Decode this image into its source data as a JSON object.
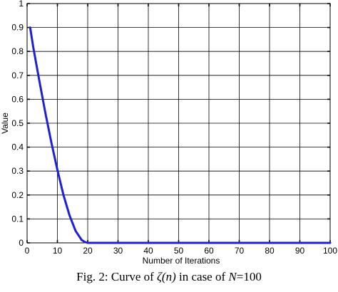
{
  "chart_data": {
    "type": "line",
    "xlabel": "Number of Iterations",
    "ylabel": "Value",
    "xlim": [
      0,
      100
    ],
    "ylim": [
      0,
      1
    ],
    "x_ticks": [
      0,
      10,
      20,
      30,
      40,
      50,
      60,
      70,
      80,
      90,
      100
    ],
    "y_ticks": [
      0,
      0.1,
      0.2,
      0.3,
      0.4,
      0.5,
      0.6,
      0.7,
      0.8,
      0.9,
      1
    ],
    "grid": true,
    "series": [
      {
        "color": "#1f1fd6",
        "x": [
          1,
          2,
          4,
          6,
          8,
          10,
          12,
          14,
          16,
          18,
          19,
          20,
          25,
          30,
          40,
          50,
          60,
          70,
          80,
          90,
          100
        ],
        "y": [
          0.9,
          0.82,
          0.68,
          0.545,
          0.42,
          0.305,
          0.2,
          0.115,
          0.05,
          0.012,
          0.004,
          0.0,
          0.0,
          0.0,
          0.0,
          0.0,
          0.0,
          0.0,
          0.0,
          0.0,
          0.0
        ]
      }
    ]
  },
  "caption": {
    "prefix": "Fig. 2: Curve of ",
    "symbol": "ζ(n)",
    "middle": " in case of ",
    "var": "N",
    "suffix": "=100"
  }
}
